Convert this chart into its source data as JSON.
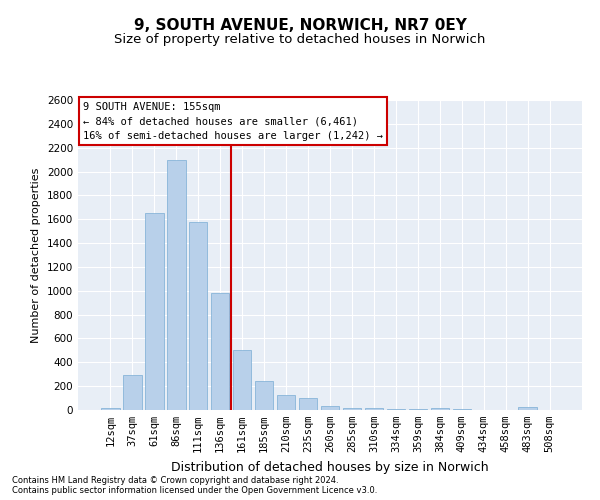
{
  "title": "9, SOUTH AVENUE, NORWICH, NR7 0EY",
  "subtitle": "Size of property relative to detached houses in Norwich",
  "xlabel": "Distribution of detached houses by size in Norwich",
  "ylabel": "Number of detached properties",
  "categories": [
    "12sqm",
    "37sqm",
    "61sqm",
    "86sqm",
    "111sqm",
    "136sqm",
    "161sqm",
    "185sqm",
    "210sqm",
    "235sqm",
    "260sqm",
    "285sqm",
    "310sqm",
    "334sqm",
    "359sqm",
    "384sqm",
    "409sqm",
    "434sqm",
    "458sqm",
    "483sqm",
    "508sqm"
  ],
  "values": [
    20,
    290,
    1650,
    2100,
    1580,
    980,
    500,
    245,
    125,
    100,
    35,
    18,
    18,
    10,
    5,
    18,
    5,
    0,
    0,
    25,
    0
  ],
  "bar_color": "#b8d0ea",
  "bar_edge_color": "#7aadd4",
  "vline_color": "#cc0000",
  "vline_x_index": 6,
  "annotation_text": "9 SOUTH AVENUE: 155sqm\n← 84% of detached houses are smaller (6,461)\n16% of semi-detached houses are larger (1,242) →",
  "annotation_box_facecolor": "#ffffff",
  "annotation_box_edgecolor": "#cc0000",
  "ylim": [
    0,
    2600
  ],
  "yticks": [
    0,
    200,
    400,
    600,
    800,
    1000,
    1200,
    1400,
    1600,
    1800,
    2000,
    2200,
    2400,
    2600
  ],
  "plot_bg_color": "#e8eef6",
  "fig_bg_color": "#ffffff",
  "title_fontsize": 11,
  "subtitle_fontsize": 9.5,
  "tick_fontsize": 7.5,
  "xlabel_fontsize": 9,
  "ylabel_fontsize": 8,
  "annotation_fontsize": 7.5,
  "footnote1": "Contains HM Land Registry data © Crown copyright and database right 2024.",
  "footnote2": "Contains public sector information licensed under the Open Government Licence v3.0.",
  "footnote_fontsize": 6
}
